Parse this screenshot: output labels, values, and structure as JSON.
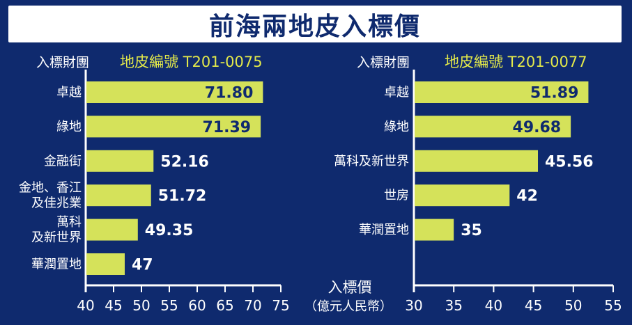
{
  "title": "前海兩地皮入標價",
  "y_header": "入標財團",
  "x_axis_label_line1": "入標價",
  "x_axis_label_line2": "（億元人民幣）",
  "colors": {
    "background": "#0f2a6e",
    "bar": "#d5e25a",
    "bar_label_inside": "#0f2a6e",
    "text": "#ffffff",
    "plot_title": "#e2e84a"
  },
  "chart_data": [
    {
      "type": "bar",
      "orientation": "horizontal",
      "title": "地皮編號 T201-0075",
      "categories": [
        "卓越",
        "綠地",
        "金融街",
        "金地、香江\n及佳兆業",
        "萬科\n及新世界",
        "華潤置地"
      ],
      "values": [
        71.8,
        71.39,
        52.16,
        51.72,
        49.35,
        47
      ],
      "value_labels": [
        "71.80",
        "71.39",
        "52.16",
        "51.72",
        "49.35",
        "47"
      ],
      "xlim": [
        40,
        75
      ],
      "xticks": [
        "40",
        "45",
        "50",
        "55",
        "60",
        "65",
        "70",
        "75"
      ],
      "grid": false
    },
    {
      "type": "bar",
      "orientation": "horizontal",
      "title": "地皮編號 T201-0077",
      "categories": [
        "卓越",
        "綠地",
        "萬科及新世界",
        "世房",
        "華潤置地"
      ],
      "values": [
        51.89,
        49.68,
        45.56,
        42,
        35
      ],
      "value_labels": [
        "51.89",
        "49.68",
        "45.56",
        "42",
        "35"
      ],
      "xlim": [
        30,
        55
      ],
      "xticks": [
        "30",
        "35",
        "40",
        "45",
        "50",
        "55"
      ],
      "grid": false
    }
  ]
}
